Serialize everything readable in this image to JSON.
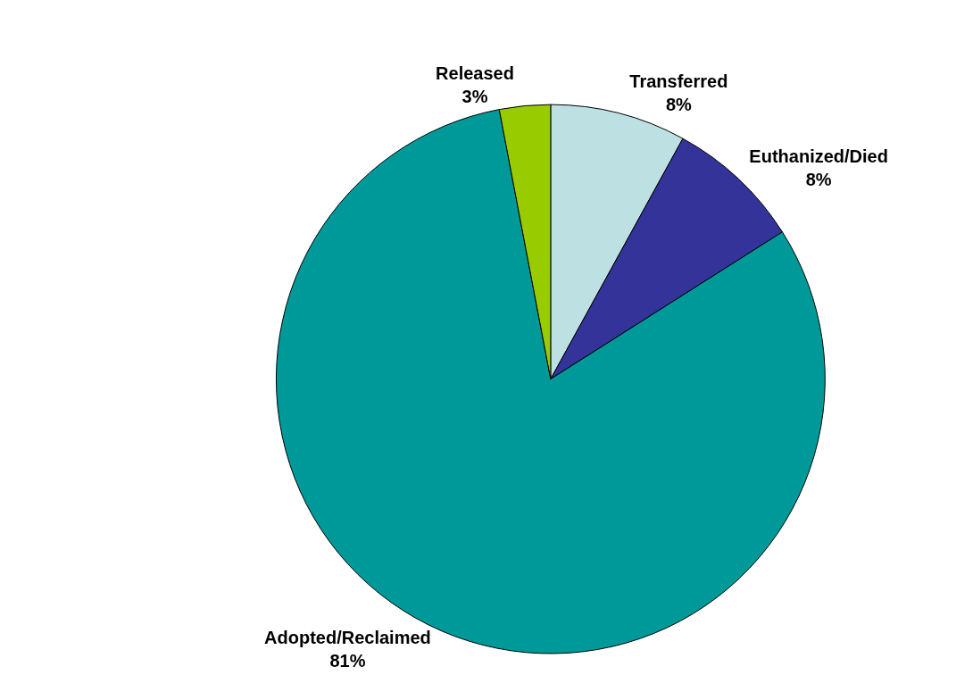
{
  "chart_data": {
    "type": "pie",
    "categories": [
      "Transferred",
      "Euthanized/Died",
      "Adopted/Reclaimed",
      "Released"
    ],
    "values": [
      8,
      8,
      81,
      3
    ],
    "value_labels": [
      "8%",
      "8%",
      "81%",
      "3%"
    ],
    "colors": [
      "#bde0e3",
      "#333399",
      "#009999",
      "#99cc00"
    ],
    "legend": false
  }
}
